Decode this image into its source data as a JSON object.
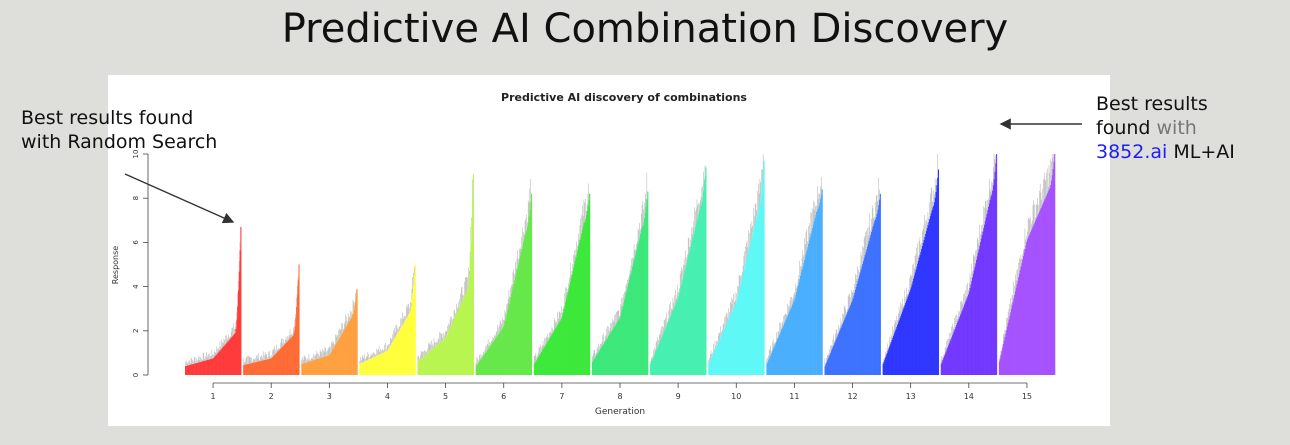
{
  "slide": {
    "title": "Predictive AI Combination Discovery"
  },
  "annotations": {
    "left": {
      "line1": "Best results found",
      "line2": "with Random Search"
    },
    "right": {
      "line1": "Best results",
      "line2_a": "found ",
      "line2_b": "with",
      "line3_a": "3852.ai",
      "line3_b": " ML+AI"
    }
  },
  "colors": {
    "link_blue": "#1d1df5",
    "muted": "#777777"
  },
  "chart_data": {
    "type": "bar",
    "title": "Predictive AI discovery of combinations",
    "xlabel": "Generation",
    "ylabel": "Response",
    "ylim": [
      0,
      10
    ],
    "y_ticks": [
      0,
      2,
      4,
      6,
      8,
      10
    ],
    "categories": [
      "1",
      "2",
      "3",
      "4",
      "5",
      "6",
      "7",
      "8",
      "9",
      "10",
      "11",
      "12",
      "13",
      "14",
      "15"
    ],
    "series": [
      {
        "generation": "1",
        "color": "#ff3b3b",
        "min": 0.4,
        "median": 0.75,
        "p90": 1.9,
        "max": 6.7
      },
      {
        "generation": "2",
        "color": "#ff6b35",
        "min": 0.45,
        "median": 0.75,
        "p90": 1.8,
        "max": 5.0
      },
      {
        "generation": "3",
        "color": "#ffa040",
        "min": 0.5,
        "median": 0.9,
        "p90": 2.6,
        "max": 3.9
      },
      {
        "generation": "4",
        "color": "#ffff3c",
        "min": 0.5,
        "median": 1.1,
        "p90": 2.8,
        "max": 5.0
      },
      {
        "generation": "5",
        "color": "#b8f550",
        "min": 0.6,
        "median": 1.7,
        "p90": 3.9,
        "max": 9.1
      },
      {
        "generation": "6",
        "color": "#66e84a",
        "min": 0.4,
        "median": 2.2,
        "p90": 6.5,
        "max": 8.2
      },
      {
        "generation": "7",
        "color": "#3ce83a",
        "min": 0.5,
        "median": 2.6,
        "p90": 6.9,
        "max": 8.2
      },
      {
        "generation": "8",
        "color": "#3ce87a",
        "min": 0.6,
        "median": 2.6,
        "p90": 6.7,
        "max": 8.3
      },
      {
        "generation": "9",
        "color": "#46f0b0",
        "min": 0.5,
        "median": 3.5,
        "p90": 7.6,
        "max": 9.4
      },
      {
        "generation": "10",
        "color": "#5ef8f6",
        "min": 0.5,
        "median": 3.3,
        "p90": 7.5,
        "max": 9.7
      },
      {
        "generation": "11",
        "color": "#4aaeff",
        "min": 0.5,
        "median": 3.4,
        "p90": 7.4,
        "max": 8.4
      },
      {
        "generation": "12",
        "color": "#3c72ff",
        "min": 0.4,
        "median": 3.4,
        "p90": 7.0,
        "max": 8.2
      },
      {
        "generation": "13",
        "color": "#2e36ff",
        "min": 0.5,
        "median": 3.9,
        "p90": 7.6,
        "max": 9.3
      },
      {
        "generation": "14",
        "color": "#7238ff",
        "min": 0.5,
        "median": 3.7,
        "p90": 8.1,
        "max": 10.0
      },
      {
        "generation": "15",
        "color": "#a552ff",
        "min": 0.6,
        "median": 6.1,
        "p90": 8.4,
        "max": 10.0
      }
    ]
  }
}
